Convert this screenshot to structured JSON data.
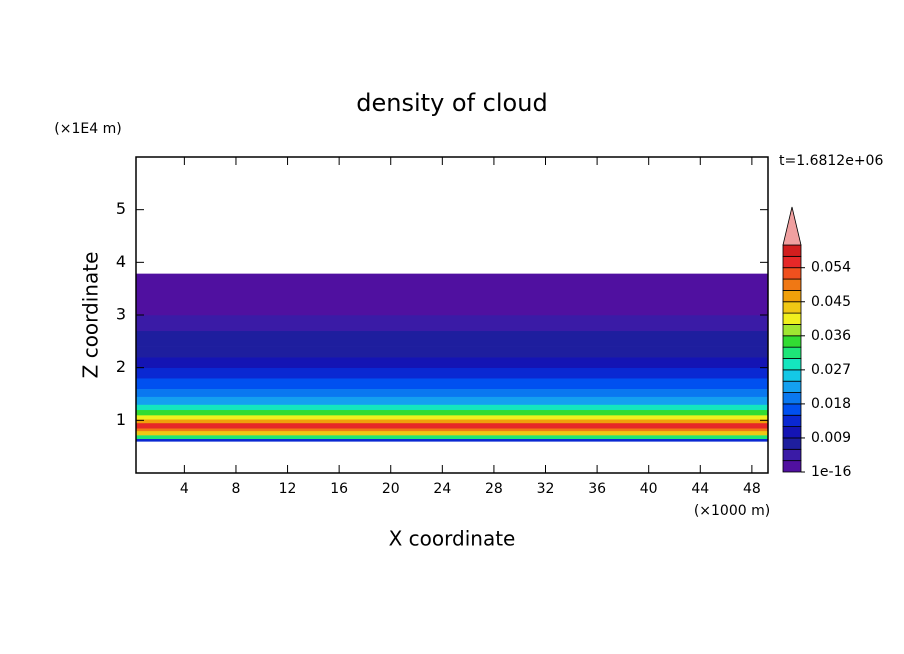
{
  "chart_data": {
    "type": "contour",
    "title": "density of cloud",
    "x_label": "X coordinate",
    "y_label": "Z coordinate",
    "x_unit": "(×1000 m)",
    "y_unit": "(×1E4 m)",
    "time_label": "t=1.6812e+06",
    "xlim": [
      0.25,
      49.25
    ],
    "ylim": [
      0,
      6
    ],
    "xticks": [
      4,
      8,
      12,
      16,
      20,
      24,
      28,
      32,
      36,
      40,
      44,
      48
    ],
    "yticks": [
      1,
      2,
      3,
      4,
      5
    ],
    "z_bins": [
      0.6,
      0.65,
      0.72,
      0.8,
      0.85,
      0.95,
      1.02,
      1.1,
      1.2,
      1.3,
      1.45,
      1.6,
      1.8,
      2.0,
      2.2,
      2.4,
      2.7,
      3.0,
      3.78
    ],
    "values": [
      0.012,
      0.03,
      0.042,
      0.05,
      0.055,
      0.047,
      0.04,
      0.033,
      0.027,
      0.022,
      0.018,
      0.015,
      0.013,
      0.011,
      0.008,
      0.006,
      0.004,
      0.002
    ],
    "levels": [
      1e-16,
      0.003,
      0.006,
      0.009,
      0.012,
      0.015,
      0.018,
      0.021,
      0.024,
      0.027,
      0.03,
      0.033,
      0.036,
      0.039,
      0.042,
      0.045,
      0.048,
      0.051,
      0.054,
      0.057,
      0.06
    ],
    "colors": [
      "#5010a0",
      "#3a1ba6",
      "#1e1e9e",
      "#1414b4",
      "#0a28d2",
      "#0050f0",
      "#0a78f0",
      "#14a0f0",
      "#14c8e6",
      "#14e6be",
      "#1ee678",
      "#32dc32",
      "#a0e632",
      "#f0f01e",
      "#f0c814",
      "#f0a00a",
      "#f07814",
      "#f0501e",
      "#e62828",
      "#d21e1e"
    ],
    "extend_color": "#f0a0a0",
    "colorbar_ticks": [
      1e-16,
      0.009,
      0.018,
      0.027,
      0.036,
      0.045,
      0.054
    ]
  }
}
